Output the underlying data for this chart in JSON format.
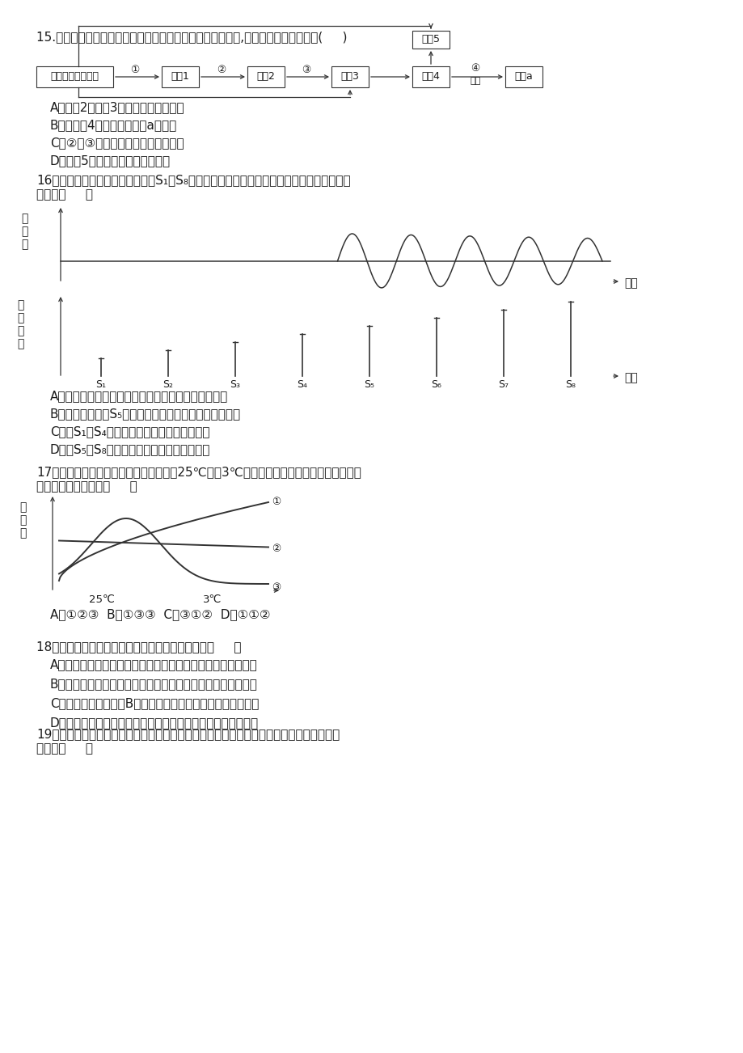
{
  "bg_color": "#ffffff",
  "text_color": "#1a1a1a",
  "q15_title": "15.如图表示人体通过体液免疫消灭破伤风杆菌外毒素的过程,下列相关叙述错误的是(     )",
  "q15_options": [
    "A．细胞2、细胞3均起源于造血干细胞",
    "B．仅细胞4中含有合成物质a的基因",
    "C．②、③过程与细胞膜上蛋白质有关",
    "D．细胞5属于保留分裂能力的细胞"
  ],
  "q16_title1": "16．如图表示刺激强度逐渐增加（S₁～S₈）时下一个神经元膜电位的变化规律，下列叙述正",
  "q16_title2": "确的是（     ）",
  "q16_options": [
    "A．刺激要达到一定的强度才能诱导神经细胞产生兴奋",
    "B．刺激强度达到S₅以后，随刺激强度增加兴奋逐渐增强",
    "C．在S₁～S₄期间，细胞膜上没有离子的进出",
    "D．在S₅～S₈期间，细胞膜的电位是外正内负"
  ],
  "q17_title1": "17．图中三条曲线分别表示当环境温度从25℃降到3℃时，人体内甲状腺激素含量、尿量及",
  "q17_title2": "酶活性的变化情况为（     ）",
  "q17_options": "A．①②③  B．①③③  C．③①②  D．①①②",
  "q18_title": "18．下列有关人体特异性免疫的说法中，正确的是（     ）",
  "q18_options": [
    "A．人体对花粉或某些药物产生的过敏反应是先天性免疫缺陷病",
    "B．血清中的抗体与破伤风杆菌结合并抑制其繁殖属于细胞免疫",
    "C．体液免疫中，效应B细胞与被感染的细胞接触使其裂解死亡",
    "D．切除胸腺后，人体的细胞免疫和体液免疫功能都会受到影响"
  ],
  "q19_title1": "19．结核杆菌感染人体并侵入细胞后会引起结核病，体内接触该靶细胞并导致其裂解的免疫",
  "q19_title2": "细胞是（     ）"
}
